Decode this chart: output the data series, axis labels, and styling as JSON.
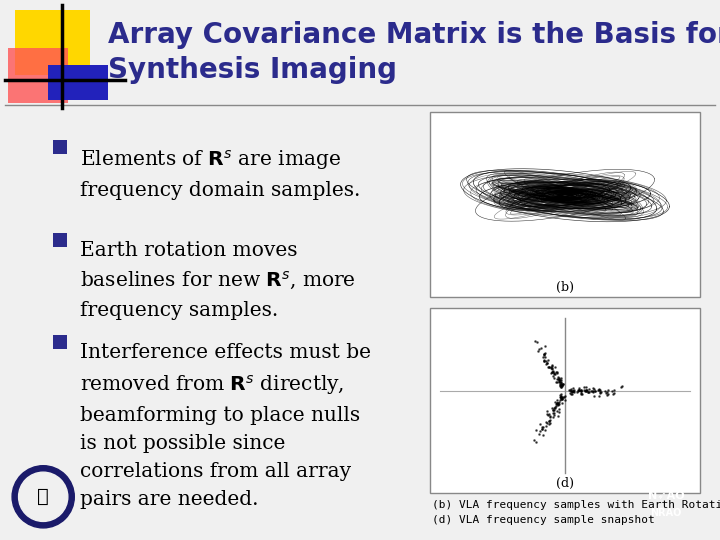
{
  "title_line1": "Array Covariance Matrix is the Basis for",
  "title_line2": "Synthesis Imaging",
  "title_color": "#2B2B8C",
  "bg_color": "#F0F0F0",
  "bullet_color": "#2B2B8C",
  "text_color": "#000000",
  "caption_line1": "(b) VLA frequency samples with Earth Rotation",
  "caption_line2": "(d) VLA frequency sample snapshot",
  "accent_colors": {
    "yellow": "#FFD700",
    "red": "#FF5555",
    "blue": "#2222BB",
    "red_fade": "#FF9999"
  },
  "img1_label": "(b)",
  "img2_label": "(d)"
}
